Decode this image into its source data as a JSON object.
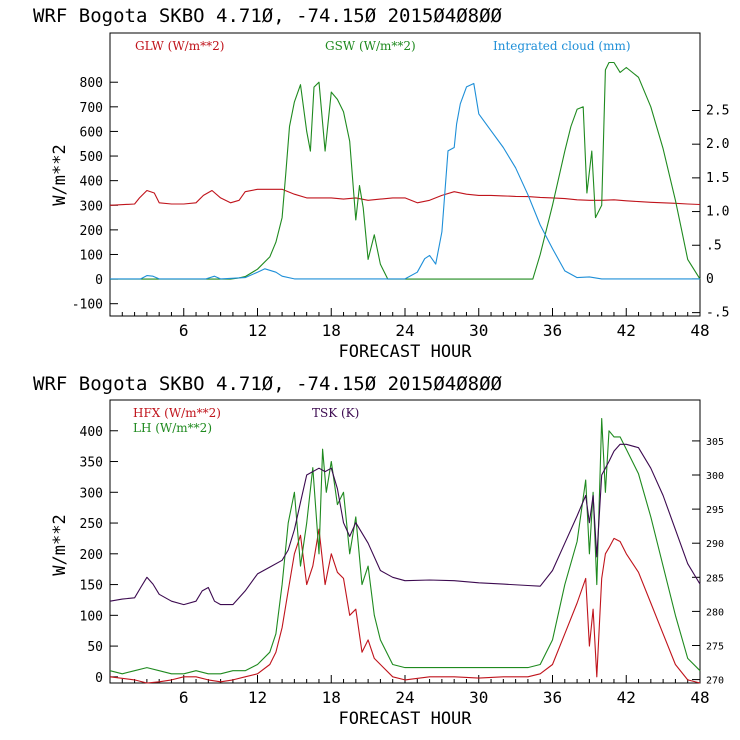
{
  "colors": {
    "red": "#c0141c",
    "green": "#1f8a1f",
    "blue": "#1e8fd8",
    "purple": "#3c0a50",
    "axis": "#000000"
  },
  "chart_data": [
    {
      "type": "line",
      "title": "WRF   Bogota SKBO     4.71Ø, -74.15Ø  2015Ø4Ø8ØØ",
      "xlabel": "FORECAST HOUR",
      "ylabel": "W/m**2",
      "xlim": [
        0,
        48
      ],
      "ylim": [
        -150,
        1000
      ],
      "y2lim": [
        -0.55,
        3.65
      ],
      "x_ticks": [
        "6",
        "12",
        "18",
        "24",
        "30",
        "36",
        "42",
        "48"
      ],
      "y_ticks": [
        "-100",
        "0",
        "100",
        "200",
        "300",
        "400",
        "500",
        "600",
        "700",
        "800"
      ],
      "y2_ticks": [
        "-.5",
        "0",
        ".5",
        "1.0",
        "1.5",
        "2.0",
        "2.5"
      ],
      "legend": [
        "GLW (W/m**2)",
        "GSW (W/m**2)",
        "Integrated cloud (mm)"
      ],
      "series": [
        {
          "name": "GLW (W/m**2)",
          "axis": "left",
          "color": "#c0141c",
          "x": [
            0,
            2,
            2.4,
            3,
            3.6,
            4,
            5,
            6,
            7,
            7.6,
            8.3,
            9,
            9.8,
            10.5,
            11,
            12,
            13,
            14,
            15,
            16,
            17,
            18,
            19,
            20,
            21,
            22,
            23,
            24,
            25,
            26,
            27,
            28,
            29,
            30,
            31,
            32,
            33,
            34,
            35,
            36,
            37,
            38,
            39,
            40,
            41,
            42,
            43,
            44,
            45,
            46,
            47,
            48
          ],
          "y": [
            300,
            305,
            330,
            360,
            350,
            310,
            305,
            305,
            310,
            340,
            360,
            330,
            310,
            320,
            355,
            365,
            365,
            365,
            345,
            330,
            330,
            330,
            325,
            330,
            320,
            325,
            330,
            330,
            310,
            320,
            340,
            355,
            345,
            340,
            340,
            338,
            336,
            335,
            332,
            330,
            327,
            322,
            320,
            320,
            322,
            318,
            315,
            312,
            310,
            308,
            305,
            303
          ]
        },
        {
          "name": "GSW (W/m**2)",
          "axis": "left",
          "color": "#1f8a1f",
          "x": [
            0,
            9.8,
            10.5,
            11,
            12,
            13,
            13.5,
            14,
            14.3,
            14.6,
            15,
            15.5,
            16,
            16.3,
            16.6,
            17,
            17.5,
            18,
            18.5,
            19,
            19.5,
            20,
            20.3,
            20.6,
            21,
            21.5,
            22,
            22.6,
            23,
            34.4,
            35,
            36,
            37,
            37.5,
            38,
            38.5,
            38.8,
            39.2,
            39.5,
            40,
            40.3,
            40.6,
            41,
            41.5,
            42,
            43,
            44,
            45,
            46,
            46.5,
            47,
            48
          ],
          "y": [
            0,
            0,
            5,
            10,
            40,
            90,
            150,
            250,
            430,
            620,
            720,
            790,
            600,
            520,
            780,
            800,
            520,
            760,
            730,
            680,
            560,
            240,
            380,
            290,
            80,
            180,
            60,
            0,
            0,
            0,
            100,
            300,
            520,
            620,
            690,
            700,
            350,
            520,
            250,
            300,
            850,
            880,
            880,
            840,
            860,
            820,
            700,
            530,
            320,
            200,
            80,
            0
          ]
        },
        {
          "name": "Integrated cloud (mm)",
          "axis": "right",
          "color": "#1e8fd8",
          "x": [
            0,
            2.5,
            3,
            3.5,
            4,
            7.8,
            8.5,
            9,
            11,
            12,
            12.6,
            13.5,
            14,
            15,
            24,
            25,
            25.6,
            26,
            26.5,
            27,
            27.5,
            28,
            28.2,
            28.5,
            29,
            29.6,
            30,
            31,
            32,
            33,
            34,
            35,
            36,
            37,
            38,
            39,
            40,
            48
          ],
          "y": [
            0,
            0,
            0.05,
            0.04,
            0,
            0,
            0.04,
            0,
            0.02,
            0.1,
            0.15,
            0.1,
            0.04,
            0,
            0,
            0.1,
            0.3,
            0.35,
            0.22,
            0.7,
            1.9,
            1.95,
            2.3,
            2.6,
            2.85,
            2.9,
            2.45,
            2.2,
            1.95,
            1.65,
            1.25,
            0.8,
            0.45,
            0.12,
            0.02,
            0.03,
            0,
            0
          ]
        }
      ]
    },
    {
      "type": "line",
      "title": "WRF   Bogota SKBO     4.71Ø, -74.15Ø  2015Ø4Ø8ØØ",
      "xlabel": "FORECAST HOUR",
      "ylabel": "W/m**2",
      "xlim": [
        0,
        48
      ],
      "ylim": [
        -10,
        450
      ],
      "y2lim": [
        269.5,
        311
      ],
      "x_ticks": [
        "6",
        "12",
        "18",
        "24",
        "30",
        "36",
        "42",
        "48"
      ],
      "y_ticks": [
        "0",
        "50",
        "100",
        "150",
        "200",
        "250",
        "300",
        "350",
        "400"
      ],
      "y2_ticks": [
        "270",
        "275",
        "280",
        "285",
        "290",
        "295",
        "300",
        "305"
      ],
      "legend": [
        "HFX (W/m**2)",
        "LH  (W/m**2)",
        "TSK (K)"
      ],
      "series": [
        {
          "name": "HFX (W/m**2)",
          "axis": "left",
          "color": "#c0141c",
          "x": [
            0,
            2,
            3,
            4,
            5,
            6,
            7,
            8,
            9,
            10,
            11,
            12,
            13,
            13.5,
            14,
            14.5,
            15,
            15.5,
            16,
            16.5,
            17,
            17.5,
            18,
            18.5,
            19,
            19.5,
            20,
            20.5,
            21,
            21.5,
            22,
            23,
            24,
            26,
            28,
            30,
            32,
            34,
            35,
            36,
            37,
            38,
            38.7,
            39,
            39.3,
            39.6,
            40,
            40.3,
            40.6,
            41,
            41.5,
            42,
            43,
            44,
            45,
            46,
            47,
            48
          ],
          "y": [
            0,
            -5,
            -10,
            -8,
            -5,
            0,
            0,
            -5,
            -8,
            -5,
            0,
            5,
            20,
            40,
            80,
            140,
            200,
            230,
            150,
            180,
            240,
            150,
            200,
            170,
            160,
            100,
            110,
            40,
            60,
            30,
            20,
            0,
            -5,
            0,
            0,
            -2,
            0,
            0,
            5,
            20,
            70,
            120,
            160,
            50,
            110,
            0,
            160,
            200,
            210,
            225,
            220,
            200,
            170,
            120,
            70,
            20,
            -5,
            -10
          ]
        },
        {
          "name": "LH  (W/m**2)",
          "axis": "left",
          "color": "#1f8a1f",
          "x": [
            0,
            1,
            2,
            3,
            4,
            5,
            6,
            7,
            8,
            9,
            10,
            11,
            12,
            13,
            13.5,
            14,
            14.5,
            15,
            15.5,
            16,
            16.5,
            17,
            17.3,
            17.6,
            18,
            18.5,
            19,
            19.5,
            20,
            20.5,
            21,
            21.5,
            22,
            23,
            24,
            26,
            28,
            30,
            32,
            34,
            35,
            36,
            37,
            38,
            38.7,
            39,
            39.3,
            39.6,
            40,
            40.3,
            40.6,
            41,
            41.5,
            42,
            43,
            44,
            45,
            46,
            47,
            48
          ],
          "y": [
            10,
            5,
            10,
            15,
            10,
            5,
            5,
            10,
            5,
            5,
            10,
            10,
            20,
            40,
            70,
            150,
            250,
            300,
            180,
            250,
            340,
            200,
            370,
            300,
            350,
            280,
            300,
            200,
            260,
            150,
            180,
            100,
            60,
            20,
            15,
            15,
            15,
            15,
            15,
            15,
            20,
            60,
            150,
            220,
            320,
            200,
            300,
            150,
            420,
            300,
            400,
            390,
            390,
            370,
            330,
            260,
            180,
            100,
            30,
            10
          ]
        },
        {
          "name": "TSK (K)",
          "axis": "right",
          "color": "#3c0a50",
          "x": [
            0,
            1,
            2,
            2.5,
            3,
            3.5,
            4,
            5,
            6,
            7,
            7.5,
            8,
            8.5,
            9,
            10,
            11,
            12,
            13,
            14,
            14.5,
            15,
            15.5,
            16,
            17,
            17.5,
            18,
            18.5,
            19,
            19.5,
            20,
            21,
            22,
            23,
            24,
            26,
            28,
            30,
            32,
            34,
            35,
            36,
            37,
            38,
            38.7,
            39,
            39.3,
            39.6,
            40,
            40.3,
            40.6,
            41,
            41.5,
            42,
            43,
            44,
            45,
            46,
            47,
            48
          ],
          "y": [
            281.5,
            281.8,
            282,
            283.5,
            285,
            284,
            282.5,
            281.5,
            281,
            281.5,
            283,
            283.5,
            281.5,
            281,
            281,
            283,
            285.5,
            286.5,
            287.5,
            289,
            292,
            296,
            300,
            301,
            300.5,
            301,
            298,
            293,
            291,
            293,
            290,
            286,
            285,
            284.5,
            284.6,
            284.5,
            284.2,
            284.0,
            283.8,
            283.7,
            286,
            290,
            294,
            297,
            293,
            297,
            288,
            300,
            301,
            302,
            303.5,
            304.5,
            304.5,
            304,
            301,
            297,
            292,
            287,
            284
          ]
        }
      ]
    }
  ]
}
